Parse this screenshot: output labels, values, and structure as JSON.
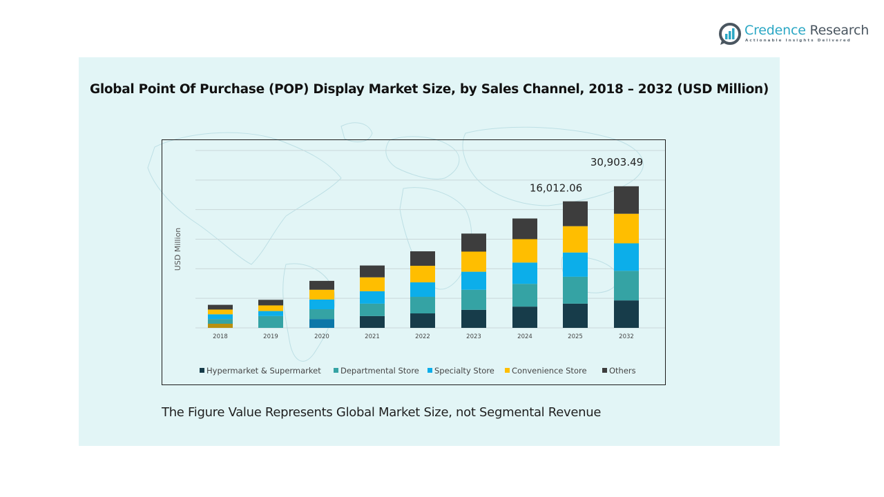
{
  "brand": {
    "name_part1": "Credence",
    "name_part2": " Research",
    "tagline": "Actionable Insights Delivered",
    "colors": {
      "primary": "#2ba7c4",
      "secondary": "#4a5660"
    }
  },
  "caption": "The Figure Value Represents Global Market Size, not Segmental Revenue",
  "chart_data": {
    "type": "bar",
    "stacked": true,
    "title": "Global Point Of Purchase (POP) Display Market Size, by Sales Channel, 2018 – 2032 (USD Million)",
    "xlabel": "",
    "ylabel": "USD Million",
    "categories": [
      "2018",
      "2019",
      "2020",
      "2021",
      "2022",
      "2023",
      "2024",
      "2025",
      "2032"
    ],
    "value_units": "relative bar height, in gridline intervals (axis unlabeled; 6 intervals shown)",
    "ylim": [
      0,
      6
    ],
    "grid": true,
    "legend_position": "bottom",
    "series": [
      {
        "name": "Hypermarket & Supermarket",
        "color": "#173c4a",
        "values": [
          0.14,
          0.0,
          0.3,
          0.4,
          0.49,
          0.61,
          0.72,
          0.82,
          0.93
        ],
        "color_overrides": {
          "2018": "#b8900f",
          "2020": "#0c77a8"
        }
      },
      {
        "name": "Departmental Store",
        "color": "#35a3a4",
        "values": [
          0.16,
          0.4,
          0.33,
          0.42,
          0.56,
          0.68,
          0.77,
          0.91,
          1.0
        ]
      },
      {
        "name": "Specialty Store",
        "color": "#0caeea",
        "values": [
          0.16,
          0.17,
          0.33,
          0.42,
          0.49,
          0.61,
          0.72,
          0.82,
          0.93
        ]
      },
      {
        "name": "Convenience Store",
        "color": "#ffbe00",
        "values": [
          0.16,
          0.19,
          0.33,
          0.47,
          0.56,
          0.68,
          0.79,
          0.89,
          1.0
        ]
      },
      {
        "name": "Others",
        "color": "#3d3d3d",
        "values": [
          0.16,
          0.19,
          0.3,
          0.4,
          0.49,
          0.61,
          0.7,
          0.84,
          0.93
        ]
      }
    ],
    "annotations": [
      {
        "category": "2025",
        "text": "16,012.06",
        "value": 16012.06
      },
      {
        "category": "2032",
        "text": "30,903.49",
        "value": 30903.49
      }
    ]
  }
}
